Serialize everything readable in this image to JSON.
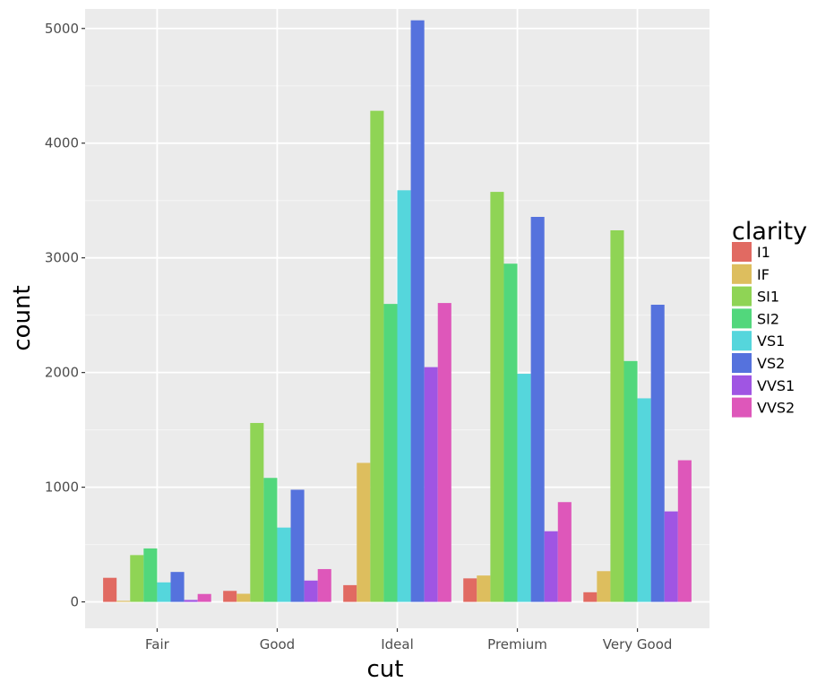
{
  "chart_data": {
    "type": "bar",
    "title": "",
    "xlabel": "cut",
    "ylabel": "count",
    "ylim": [
      -230,
      5170
    ],
    "yticks": [
      0,
      1000,
      2000,
      3000,
      4000,
      5000
    ],
    "grid": true,
    "legend": {
      "title": "clarity",
      "position": "right"
    },
    "categories": [
      "Fair",
      "Good",
      "Ideal",
      "Premium",
      "Very Good"
    ],
    "series": [
      {
        "name": "I1",
        "color": "#E16A62",
        "values": [
          210,
          96,
          146,
          205,
          84
        ]
      },
      {
        "name": "IF",
        "color": "#DDBE5E",
        "values": [
          9,
          71,
          1212,
          230,
          268
        ]
      },
      {
        "name": "SI1",
        "color": "#8FD455",
        "values": [
          408,
          1560,
          4282,
          3575,
          3240
        ]
      },
      {
        "name": "SI2",
        "color": "#52D77C",
        "values": [
          466,
          1081,
          2598,
          2949,
          2100
        ]
      },
      {
        "name": "VS1",
        "color": "#55D6DC",
        "values": [
          170,
          648,
          3589,
          1989,
          1775
        ]
      },
      {
        "name": "VS2",
        "color": "#5572DD",
        "values": [
          261,
          978,
          5071,
          3357,
          2591
        ]
      },
      {
        "name": "VVS1",
        "color": "#A055E3",
        "values": [
          17,
          186,
          2047,
          616,
          789
        ]
      },
      {
        "name": "VVS2",
        "color": "#DE57BA",
        "values": [
          69,
          286,
          2606,
          870,
          1235
        ]
      }
    ]
  }
}
